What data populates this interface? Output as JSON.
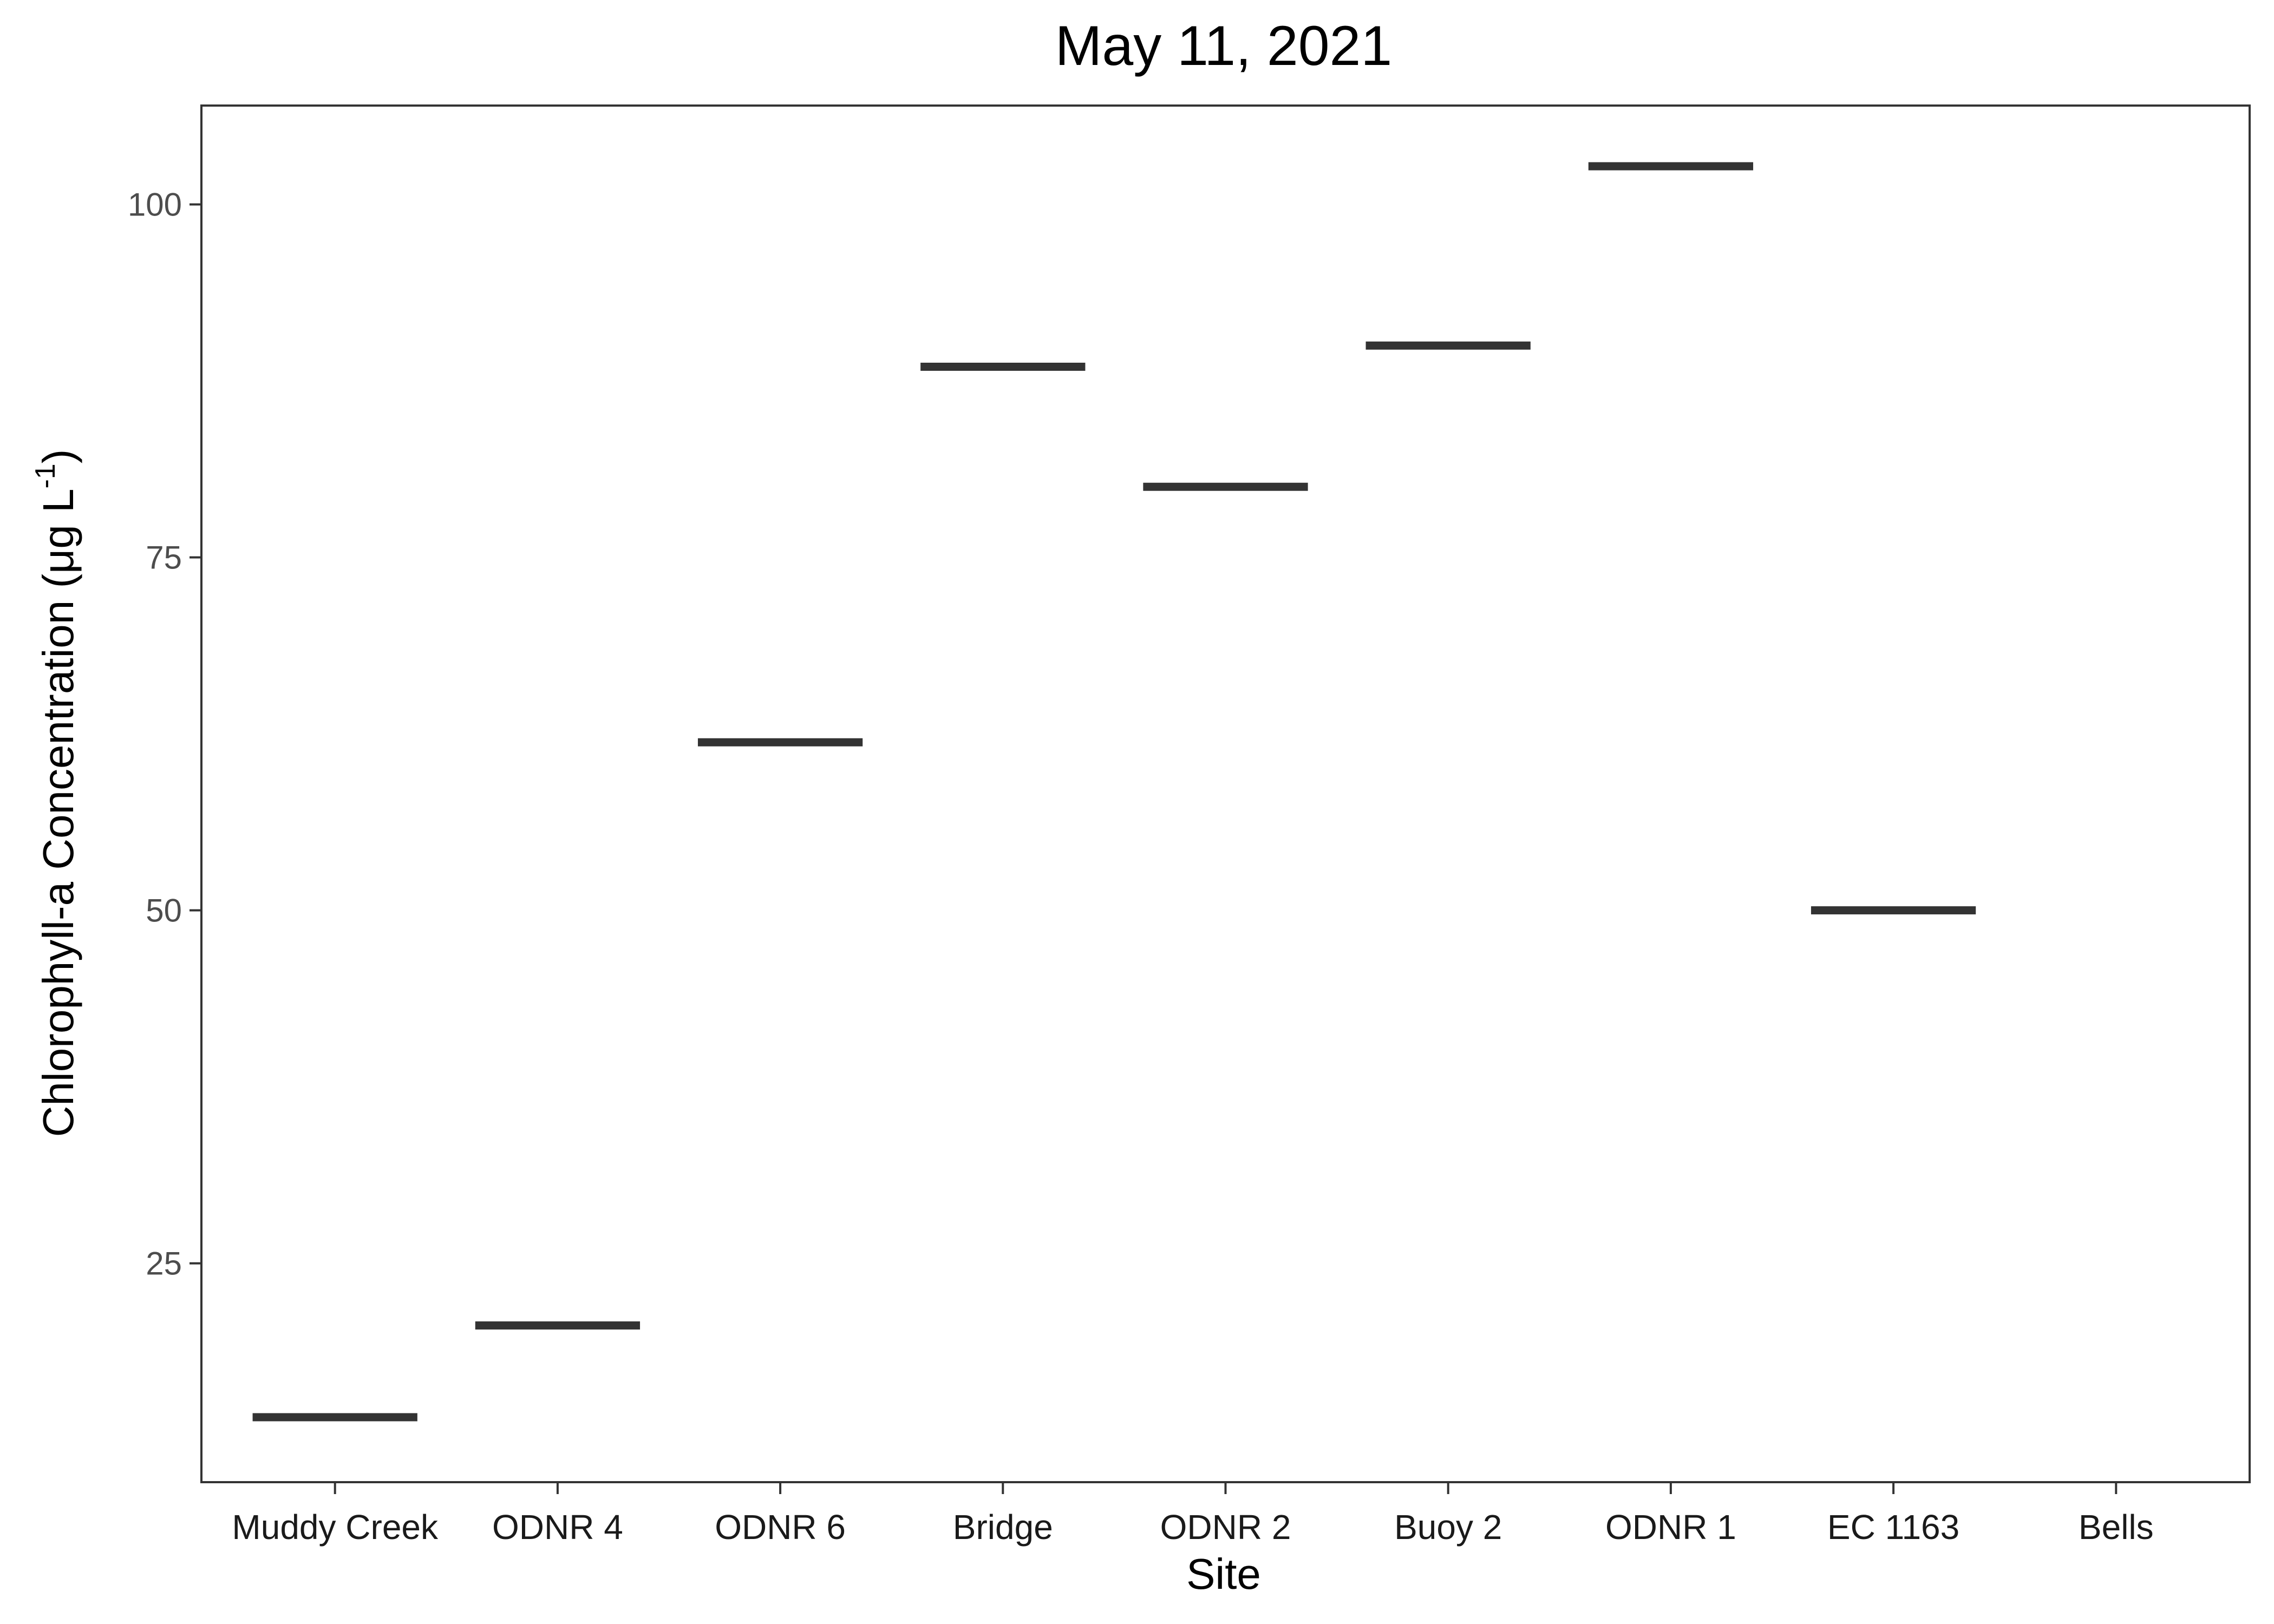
{
  "chart_data": {
    "type": "bar",
    "title": "May 11, 2021",
    "xlabel": "Site",
    "ylabel": {
      "main": "Chlorophyll-a Concentration (μg L",
      "superscript": "-1",
      "close": ")"
    },
    "categories": [
      "Muddy Creek",
      "ODNR 4",
      "ODNR 6",
      "Bridge",
      "ODNR 2",
      "Buoy 2",
      "ODNR 1",
      "EC 1163",
      "Bells"
    ],
    "values": [
      14.1,
      20.6,
      61.9,
      88.5,
      80.0,
      90.0,
      102.7,
      50.0,
      null
    ],
    "yticks": [
      25,
      50,
      75,
      100
    ],
    "ylim": [
      9.5,
      107
    ],
    "grid": false,
    "mark": "crossbar",
    "colors": {
      "mark": "#333333",
      "panel_border": "#333333",
      "axis_tick": "#333333",
      "background": "#ffffff"
    }
  }
}
